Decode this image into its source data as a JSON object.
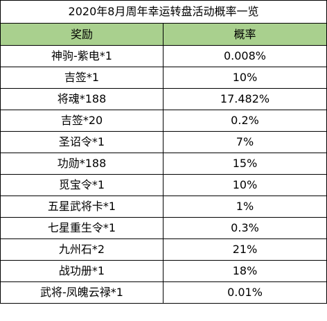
{
  "title": "2020年8月周年幸运转盘活动概率一览",
  "columns": [
    "奖励",
    "概率"
  ],
  "colors": {
    "header_fill": "#a9d08e",
    "border": "#000000",
    "background": "#ffffff"
  },
  "rows": [
    {
      "reward": "神驹-紫电*1",
      "prob": "0.008%"
    },
    {
      "reward": "吉签*1",
      "prob": "10%"
    },
    {
      "reward": "将魂*188",
      "prob": "17.482%"
    },
    {
      "reward": "吉签*20",
      "prob": "0.2%"
    },
    {
      "reward": "圣诏令*1",
      "prob": "7%"
    },
    {
      "reward": "功勋*188",
      "prob": "15%"
    },
    {
      "reward": "觅宝令*1",
      "prob": "10%"
    },
    {
      "reward": "五星武将卡*1",
      "prob": "1%"
    },
    {
      "reward": "七星重生令*1",
      "prob": "0.3%"
    },
    {
      "reward": "九州石*2",
      "prob": "21%"
    },
    {
      "reward": "战功册*1",
      "prob": "18%"
    },
    {
      "reward": "武将-凤魄云禄*1",
      "prob": "0.01%"
    }
  ]
}
